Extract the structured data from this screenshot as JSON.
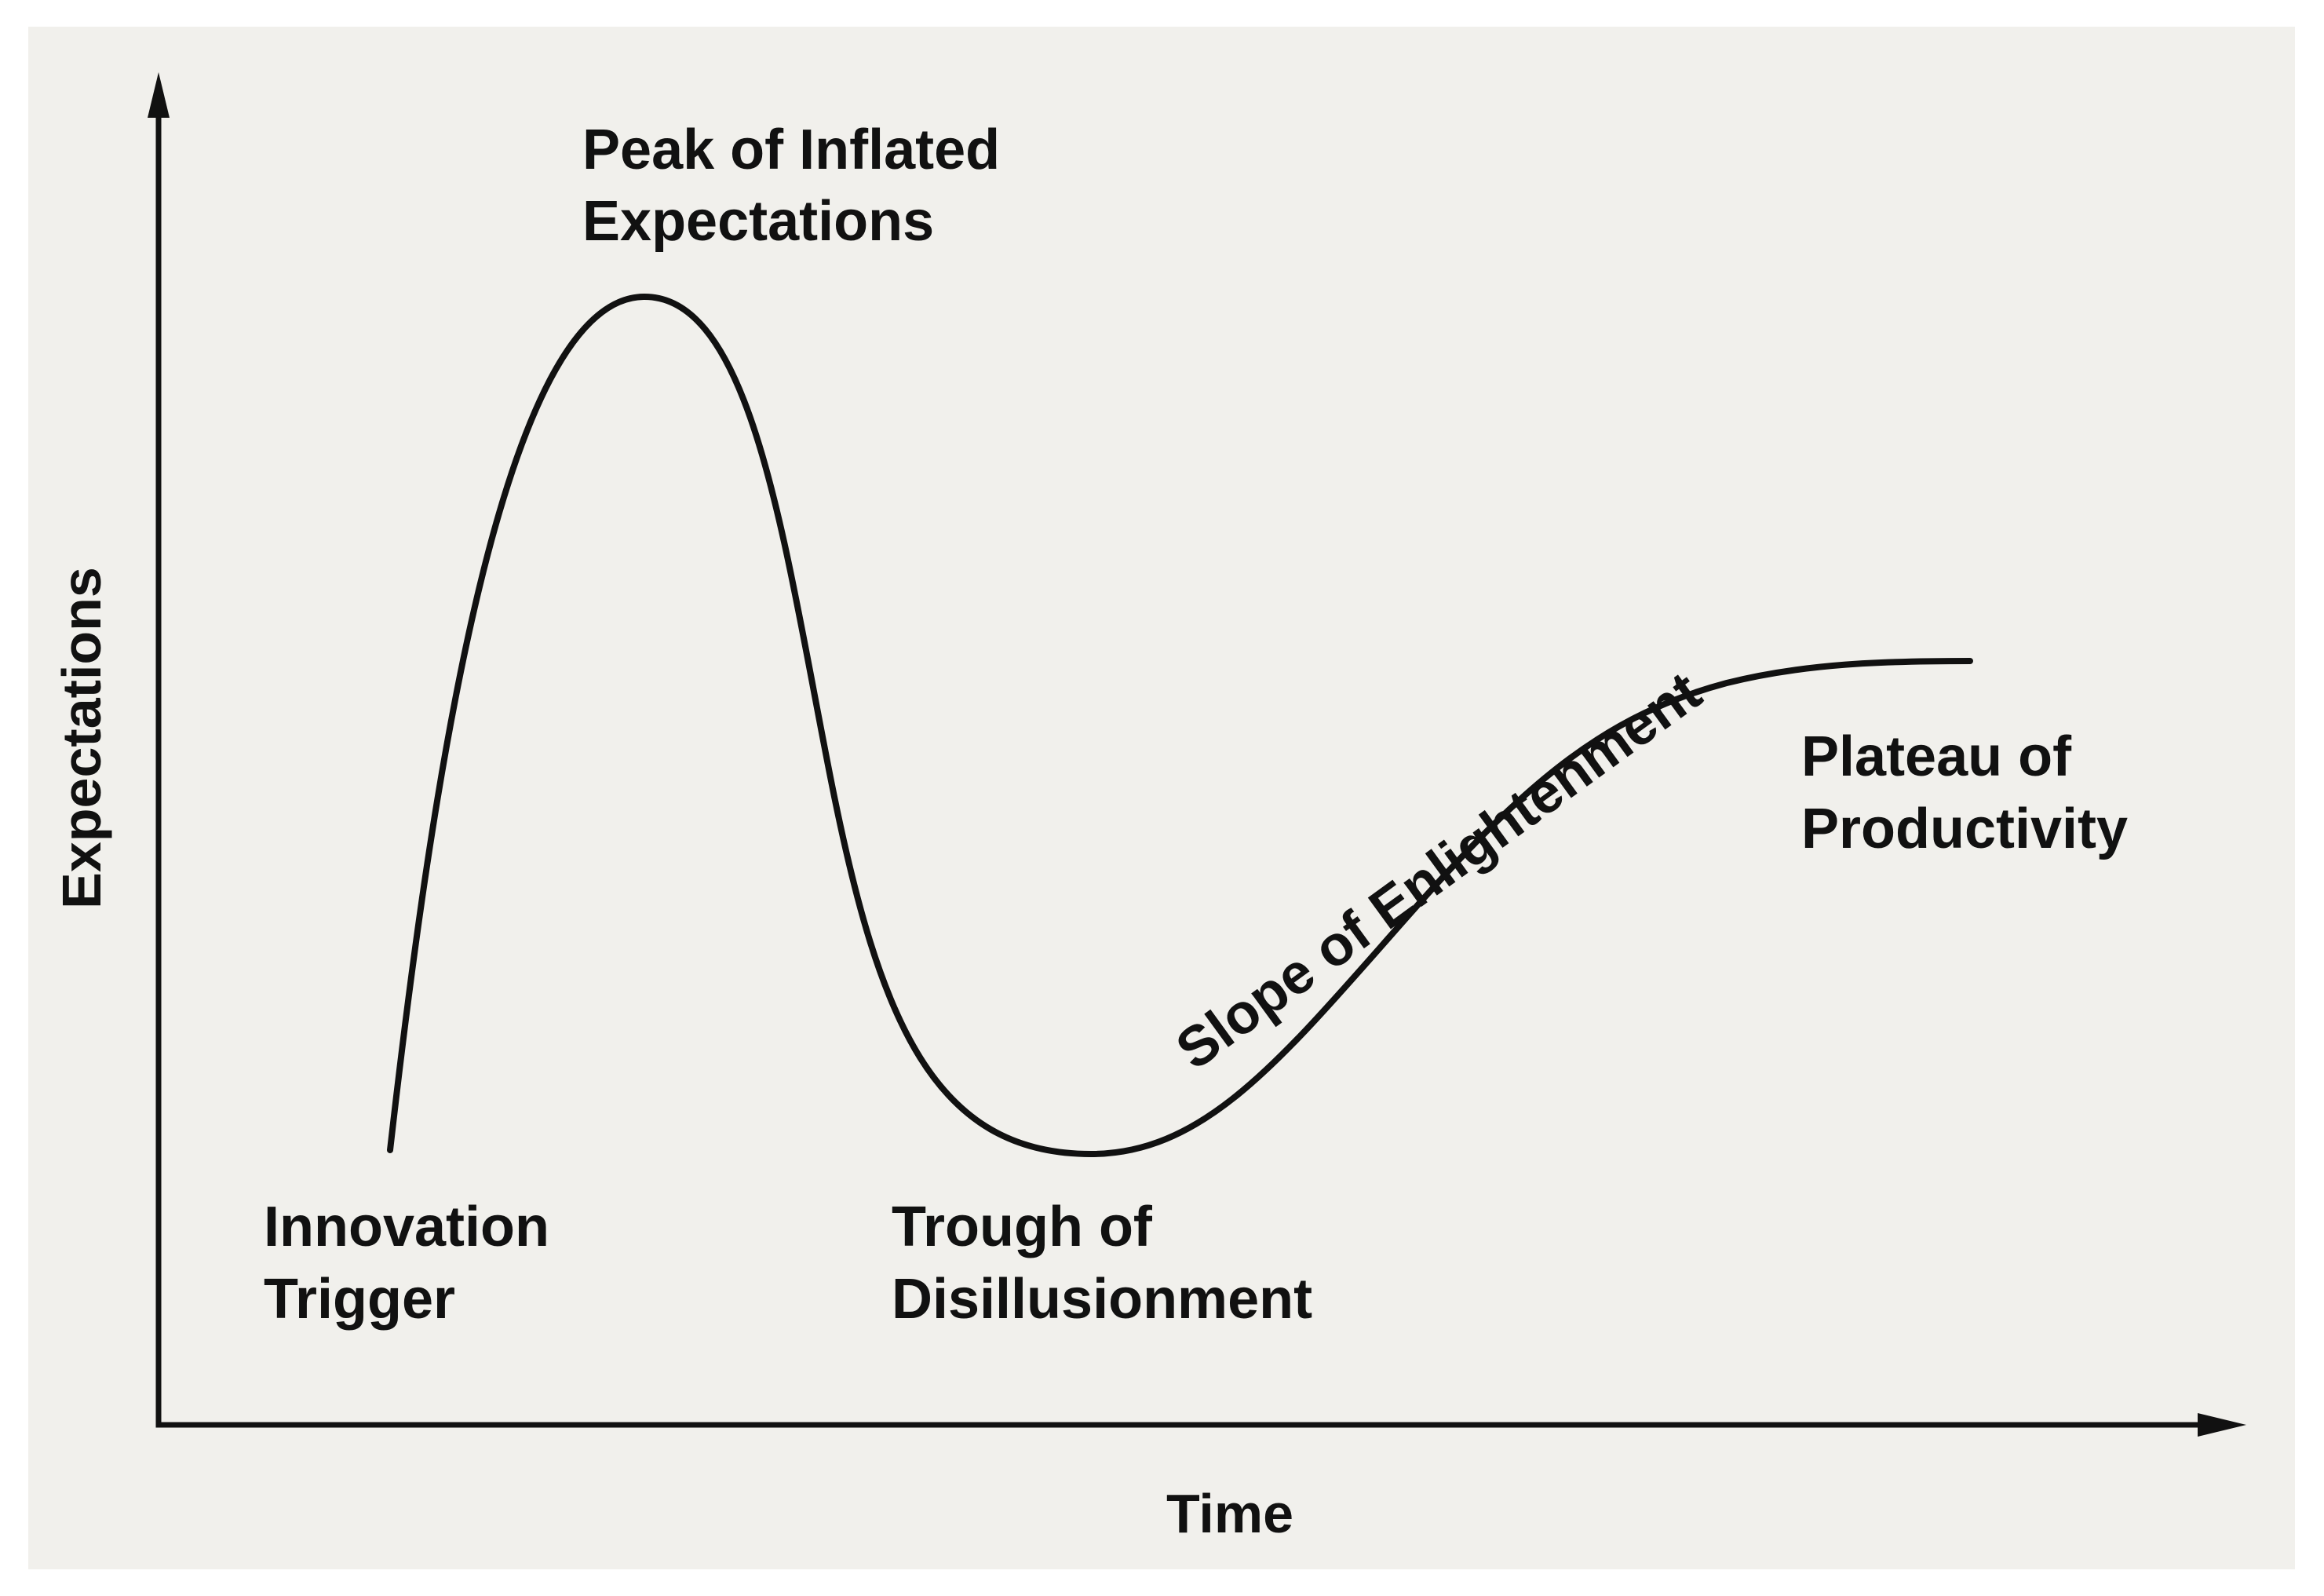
{
  "diagram": {
    "axes": {
      "y_label": "Expectations",
      "x_label": "Time"
    },
    "phases": {
      "innovation_trigger": [
        "Innovation",
        "Trigger"
      ],
      "peak": [
        "Peak of Inflated",
        "Expectations"
      ],
      "trough": [
        "Trough of",
        "Disillusionment"
      ],
      "slope": "Slope of Enlightenment",
      "plateau": [
        "Plateau of",
        "Productivity"
      ]
    },
    "colors": {
      "background": "#f1f0ec",
      "ink": "#111111"
    }
  }
}
